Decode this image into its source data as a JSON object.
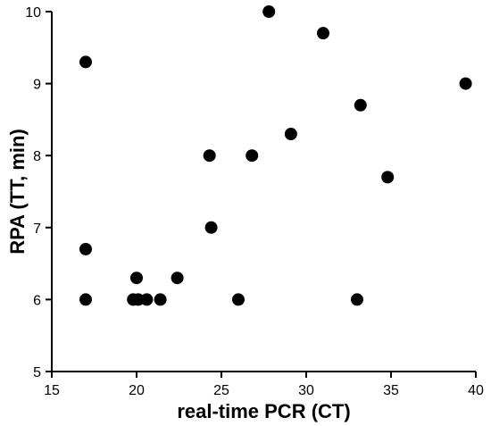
{
  "chart_data": {
    "type": "scatter",
    "title": "",
    "xlabel": "real-time PCR (CT)",
    "ylabel": "RPA (TT, min)",
    "xlim": [
      15,
      40
    ],
    "ylim": [
      5,
      10
    ],
    "xticks": [
      15,
      20,
      25,
      30,
      35,
      40
    ],
    "yticks": [
      5,
      6,
      7,
      8,
      9,
      10
    ],
    "grid": false,
    "legend": "none",
    "marker_color": "#000000",
    "points": [
      {
        "x": 17.0,
        "y": 9.3
      },
      {
        "x": 17.0,
        "y": 6.7
      },
      {
        "x": 17.0,
        "y": 6.0
      },
      {
        "x": 19.8,
        "y": 6.0
      },
      {
        "x": 20.0,
        "y": 6.3
      },
      {
        "x": 20.1,
        "y": 6.0
      },
      {
        "x": 20.6,
        "y": 6.0
      },
      {
        "x": 21.4,
        "y": 6.0
      },
      {
        "x": 22.4,
        "y": 6.3
      },
      {
        "x": 24.3,
        "y": 8.0
      },
      {
        "x": 24.4,
        "y": 7.0
      },
      {
        "x": 26.0,
        "y": 6.0
      },
      {
        "x": 26.8,
        "y": 8.0
      },
      {
        "x": 27.8,
        "y": 10.0
      },
      {
        "x": 29.1,
        "y": 8.3
      },
      {
        "x": 31.0,
        "y": 9.7
      },
      {
        "x": 33.0,
        "y": 6.0
      },
      {
        "x": 33.2,
        "y": 8.7
      },
      {
        "x": 34.8,
        "y": 7.7
      },
      {
        "x": 39.4,
        "y": 9.0
      }
    ]
  }
}
